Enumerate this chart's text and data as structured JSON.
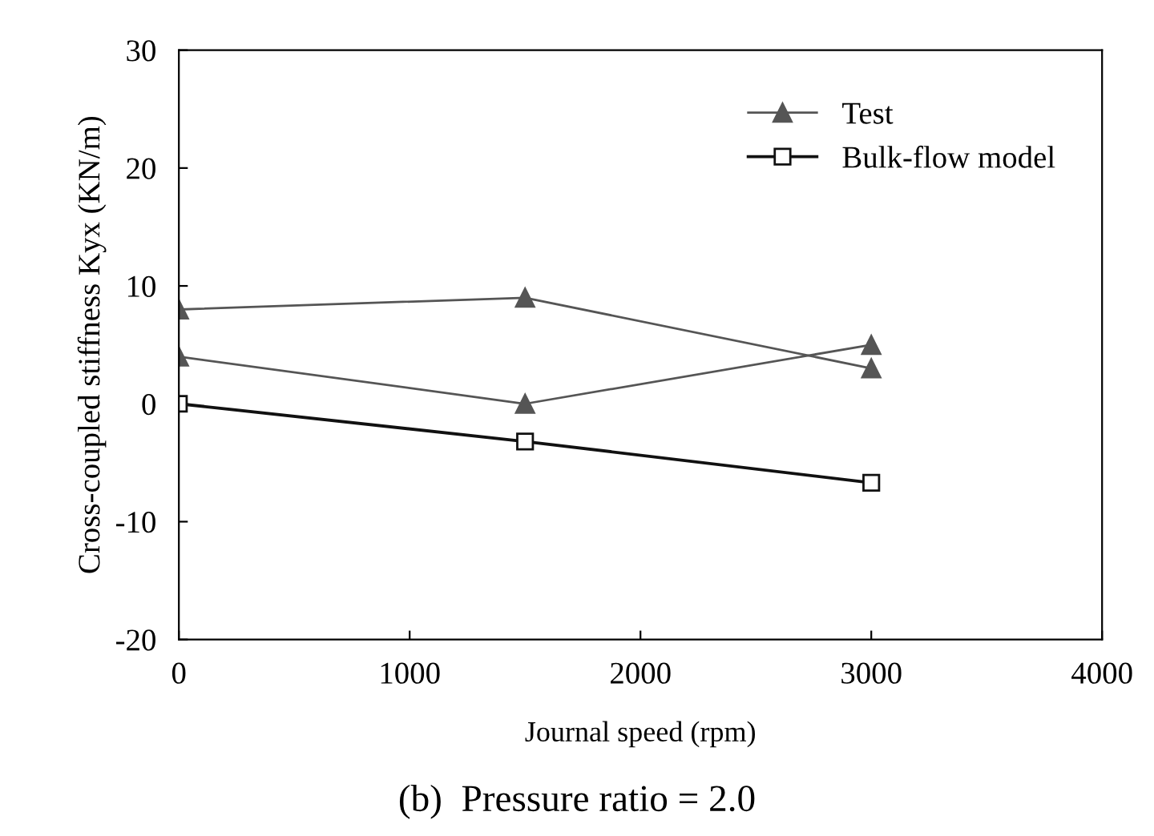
{
  "chart_data": {
    "type": "line",
    "xlabel": "Journal speed (rpm)",
    "ylabel": "Cross-coupled stiffness Kyx (KN/m)",
    "annotations": [
      "(b)  Pressure ratio = 2.0"
    ],
    "x": [
      0,
      1500,
      3000
    ],
    "series": [
      {
        "name": "Test",
        "color": "#555555",
        "values": [
          8,
          9,
          3
        ],
        "marker": "triangle"
      },
      {
        "color": "#555555",
        "values": [
          4,
          0,
          5
        ],
        "marker": "triangle"
      },
      {
        "name": "Bulk-flow model",
        "color": "#111111",
        "values": [
          0,
          -3.2,
          -6.7
        ],
        "marker": "square"
      }
    ],
    "xlim": [
      0,
      4000
    ],
    "xticks": [
      0,
      1000,
      2000,
      3000,
      4000
    ],
    "ylim": [
      -20,
      30
    ],
    "yticks": [
      -20,
      -10,
      0,
      10,
      20,
      30
    ],
    "grid": false,
    "legend": "top right",
    "line_style": "solid"
  }
}
